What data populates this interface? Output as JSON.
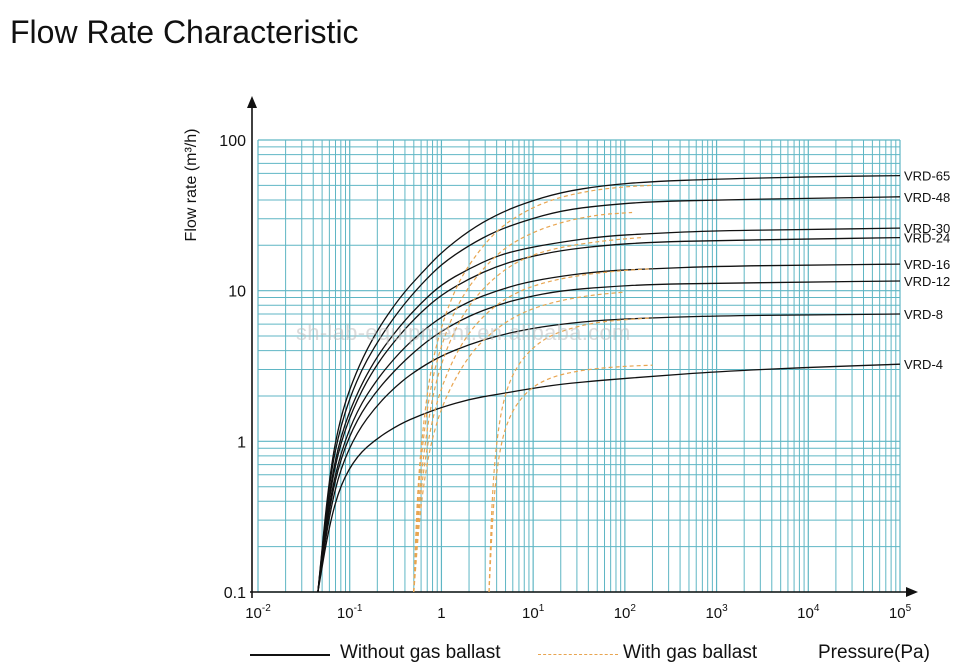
{
  "page": {
    "title": "Flow Rate Characteristic",
    "watermark": "sh-lab-equipment.en.alibaba.com"
  },
  "legend": {
    "solid_label": "Without gas ballast",
    "dashed_label": "With gas ballast",
    "x_axis_label": "Pressure(Pa)"
  },
  "colors": {
    "grid": "#5fb6c4",
    "solid_curve": "#111111",
    "dashed_curve": "#e8a550",
    "axis": "#111111"
  },
  "chart_data": {
    "type": "line",
    "title": "Flow Rate Characteristic",
    "xlabel": "Pressure(Pa)",
    "ylabel": "Flow rate (m³/h)",
    "xscale": "log",
    "yscale": "log",
    "xlim": [
      0.01,
      100000
    ],
    "ylim": [
      0.1,
      100
    ],
    "x_ticks": [
      {
        "base": "10",
        "exp": "-2"
      },
      {
        "base": "10",
        "exp": "-1"
      },
      {
        "base": "1",
        "exp": ""
      },
      {
        "base": "10",
        "exp": "1"
      },
      {
        "base": "10",
        "exp": "2"
      },
      {
        "base": "10",
        "exp": "3"
      },
      {
        "base": "10",
        "exp": "4"
      },
      {
        "base": "10",
        "exp": "5"
      }
    ],
    "y_ticks": [
      "0.1",
      "1",
      "10",
      "100"
    ],
    "grid": true,
    "series": [
      {
        "name": "VRD-65",
        "style": "solid",
        "x": [
          0.045,
          0.06,
          0.08,
          0.12,
          0.2,
          0.35,
          0.6,
          1,
          2,
          4,
          8,
          20,
          60,
          200,
          1000,
          10000,
          100000
        ],
        "y": [
          0.1,
          0.6,
          1.5,
          3,
          5.5,
          9,
          13,
          18,
          25,
          32,
          38,
          45,
          50,
          53,
          55,
          57,
          58
        ]
      },
      {
        "name": "VRD-48",
        "style": "solid",
        "x": [
          0.045,
          0.06,
          0.08,
          0.12,
          0.2,
          0.35,
          0.6,
          1,
          2,
          4,
          8,
          20,
          60,
          200,
          1000,
          10000,
          100000
        ],
        "y": [
          0.1,
          0.55,
          1.3,
          2.6,
          4.6,
          7.5,
          11,
          15,
          20,
          25,
          29,
          34,
          37,
          39,
          40,
          41,
          42
        ]
      },
      {
        "name": "VRD-30",
        "style": "solid",
        "x": [
          0.045,
          0.06,
          0.08,
          0.12,
          0.2,
          0.35,
          0.6,
          1,
          2,
          4,
          8,
          20,
          60,
          200,
          1000,
          10000,
          100000
        ],
        "y": [
          0.1,
          0.48,
          1.1,
          2.1,
          3.7,
          5.8,
          8.3,
          11,
          14,
          17,
          19,
          21,
          23,
          24,
          25,
          25.5,
          26
        ]
      },
      {
        "name": "VRD-24",
        "style": "solid",
        "x": [
          0.045,
          0.06,
          0.08,
          0.12,
          0.2,
          0.35,
          0.6,
          1,
          2,
          4,
          8,
          20,
          60,
          200,
          1000,
          10000,
          100000
        ],
        "y": [
          0.1,
          0.45,
          1.0,
          1.9,
          3.3,
          5.1,
          7.2,
          9.4,
          12,
          14.5,
          16.5,
          18.5,
          20,
          21,
          21.5,
          22,
          22.5
        ]
      },
      {
        "name": "VRD-16",
        "style": "solid",
        "x": [
          0.045,
          0.06,
          0.08,
          0.12,
          0.2,
          0.35,
          0.6,
          1,
          2,
          4,
          8,
          20,
          60,
          200,
          1000,
          10000,
          100000
        ],
        "y": [
          0.1,
          0.4,
          0.85,
          1.6,
          2.6,
          3.9,
          5.3,
          6.7,
          8.5,
          10,
          11.3,
          12.5,
          13.5,
          14,
          14.5,
          14.8,
          15
        ]
      },
      {
        "name": "VRD-12",
        "style": "solid",
        "x": [
          0.045,
          0.06,
          0.08,
          0.12,
          0.2,
          0.35,
          0.6,
          1,
          2,
          4,
          8,
          20,
          60,
          200,
          1000,
          10000,
          100000
        ],
        "y": [
          0.1,
          0.37,
          0.78,
          1.4,
          2.2,
          3.2,
          4.3,
          5.4,
          6.8,
          8,
          9,
          10,
          10.6,
          11,
          11.2,
          11.4,
          11.6
        ]
      },
      {
        "name": "VRD-8",
        "style": "solid",
        "x": [
          0.045,
          0.06,
          0.08,
          0.12,
          0.2,
          0.35,
          0.6,
          1,
          2,
          4,
          8,
          20,
          60,
          200,
          1000,
          10000,
          100000
        ],
        "y": [
          0.1,
          0.33,
          0.67,
          1.15,
          1.75,
          2.45,
          3.1,
          3.7,
          4.4,
          5,
          5.5,
          6,
          6.4,
          6.6,
          6.8,
          6.9,
          7
        ]
      },
      {
        "name": "VRD-4",
        "style": "solid",
        "x": [
          0.045,
          0.06,
          0.08,
          0.12,
          0.2,
          0.35,
          0.6,
          1,
          2,
          4,
          8,
          20,
          60,
          200,
          1000,
          10000,
          100000
        ],
        "y": [
          0.1,
          0.28,
          0.52,
          0.8,
          1.05,
          1.3,
          1.5,
          1.68,
          1.9,
          2.05,
          2.2,
          2.4,
          2.55,
          2.7,
          2.9,
          3.1,
          3.25
        ]
      },
      {
        "name": "",
        "style": "dashed",
        "x": [
          0.5,
          0.55,
          0.65,
          0.8,
          1.1,
          1.6,
          2.5,
          4,
          7,
          15,
          40,
          100,
          200
        ],
        "y": [
          0.1,
          0.5,
          1.5,
          3.5,
          7,
          12,
          18,
          25,
          32,
          40,
          46,
          49,
          50
        ]
      },
      {
        "name": "",
        "style": "dashed",
        "x": [
          0.5,
          0.55,
          0.66,
          0.82,
          1.15,
          1.7,
          2.7,
          4.5,
          8,
          18,
          50,
          120
        ],
        "y": [
          0.1,
          0.45,
          1.3,
          2.9,
          5.6,
          9.3,
          13.5,
          18.5,
          23,
          28,
          32,
          33
        ]
      },
      {
        "name": "",
        "style": "dashed",
        "x": [
          0.5,
          0.56,
          0.68,
          0.85,
          1.2,
          1.8,
          2.9,
          5,
          9,
          20,
          60,
          150
        ],
        "y": [
          0.1,
          0.4,
          1.1,
          2.4,
          4.5,
          7.3,
          10.5,
          14,
          17,
          19.5,
          21.5,
          22.5
        ]
      },
      {
        "name": "",
        "style": "dashed",
        "x": [
          0.5,
          0.57,
          0.7,
          0.9,
          1.3,
          2,
          3.3,
          6,
          12,
          30,
          80,
          200
        ],
        "y": [
          0.1,
          0.37,
          0.95,
          1.9,
          3.4,
          5.3,
          7.4,
          9.5,
          11.2,
          12.6,
          13.5,
          14
        ]
      },
      {
        "name": "",
        "style": "dashed",
        "x": [
          0.5,
          0.58,
          0.72,
          0.95,
          1.4,
          2.2,
          3.8,
          7,
          15,
          40,
          100
        ],
        "y": [
          0.1,
          0.33,
          0.82,
          1.55,
          2.6,
          4,
          5.5,
          7,
          8.3,
          9.3,
          9.8
        ]
      },
      {
        "name": "",
        "style": "dashed",
        "x": [
          3.3,
          3.6,
          4.2,
          5.2,
          7,
          10,
          15,
          25,
          45,
          90,
          200
        ],
        "y": [
          0.1,
          0.5,
          1.3,
          2.3,
          3.3,
          4.2,
          5,
          5.6,
          6.1,
          6.4,
          6.6
        ]
      },
      {
        "name": "",
        "style": "dashed",
        "x": [
          3.3,
          3.7,
          4.4,
          5.6,
          7.7,
          11,
          17,
          28,
          50,
          100,
          200
        ],
        "y": [
          0.1,
          0.42,
          0.95,
          1.5,
          2,
          2.4,
          2.7,
          2.9,
          3.05,
          3.15,
          3.2
        ]
      }
    ]
  }
}
